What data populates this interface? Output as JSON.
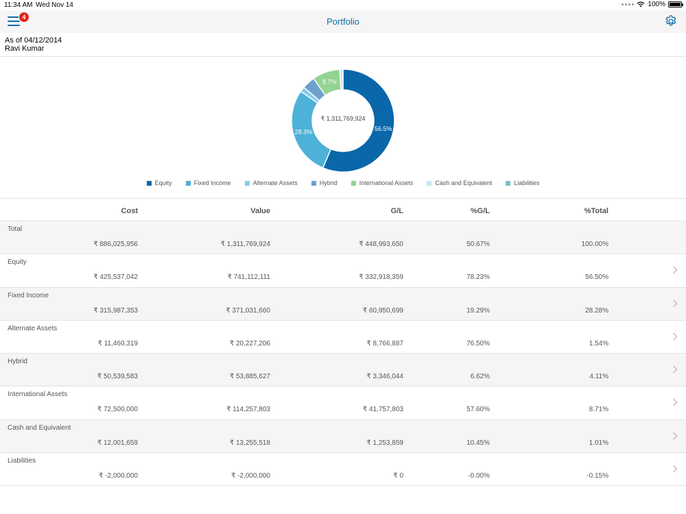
{
  "status": {
    "time": "11:34 AM",
    "date": "Wed Nov 14",
    "battery": "100%",
    "battery_level": 1.0
  },
  "nav": {
    "title": "Portfolio",
    "badge": "4",
    "menu_icon": "hamburger-icon",
    "settings_icon": "gear-icon"
  },
  "asof": {
    "date_line": "As of 04/12/2014",
    "name": "Ravi Kumar"
  },
  "chart_data": {
    "type": "pie",
    "center_label": "₹ 1,311,769,924",
    "slices": [
      {
        "name": "Equity",
        "value": 56.5,
        "color": "#0a67aa",
        "label": "56.5%"
      },
      {
        "name": "Fixed Income",
        "value": 28.3,
        "color": "#4db1d8",
        "label": "28.3%"
      },
      {
        "name": "Alternate Assets",
        "value": 1.54,
        "color": "#86cbed",
        "label": ""
      },
      {
        "name": "Hybrid",
        "value": 4.11,
        "color": "#6fa0cc",
        "label": ""
      },
      {
        "name": "International Assets",
        "value": 8.7,
        "color": "#94d392",
        "label": "8.7%"
      },
      {
        "name": "Cash and Equivalent",
        "value": 1.01,
        "color": "#c5e7f4",
        "label": ""
      },
      {
        "name": "Liabilities",
        "value": 0.0,
        "color": "#70c6c2",
        "label": ""
      }
    ],
    "legend": [
      {
        "name": "Equity",
        "color": "#0a67aa"
      },
      {
        "name": "Fixed Income",
        "color": "#4db1d8"
      },
      {
        "name": "Alternate Assets",
        "color": "#86cbed"
      },
      {
        "name": "Hybrid",
        "color": "#6fa0cc"
      },
      {
        "name": "International Assets",
        "color": "#94d392"
      },
      {
        "name": "Cash and Equivalent",
        "color": "#c5e7f4"
      },
      {
        "name": "Liabilities",
        "color": "#70c6c2"
      }
    ]
  },
  "table": {
    "headers": {
      "cost": "Cost",
      "value": "Value",
      "gl": "G/L",
      "pgl": "%G/L",
      "total": "%Total"
    },
    "rows": [
      {
        "label": "Total",
        "cost": "₹ 886,025,956",
        "value": "₹ 1,311,769,924",
        "gl": "₹ 448,993,650",
        "pgl": "50.67%",
        "total": "100.00%",
        "chevron": false
      },
      {
        "label": "Equity",
        "cost": "₹ 425,537,042",
        "value": "₹ 741,112,111",
        "gl": "₹ 332,918,359",
        "pgl": "78.23%",
        "total": "56.50%",
        "chevron": true
      },
      {
        "label": "Fixed Income",
        "cost": "₹ 315,987,353",
        "value": "₹ 371,031,660",
        "gl": "₹ 60,950,699",
        "pgl": "19.29%",
        "total": "28.28%",
        "chevron": true
      },
      {
        "label": "Alternate Assets",
        "cost": "₹ 11,460,319",
        "value": "₹ 20,227,206",
        "gl": "₹ 8,766,887",
        "pgl": "76.50%",
        "total": "1.54%",
        "chevron": true
      },
      {
        "label": "Hybrid",
        "cost": "₹ 50,539,583",
        "value": "₹ 53,885,627",
        "gl": "₹ 3,346,044",
        "pgl": "6.62%",
        "total": "4.11%",
        "chevron": true
      },
      {
        "label": "International Assets",
        "cost": "₹ 72,500,000",
        "value": "₹ 114,257,803",
        "gl": "₹ 41,757,803",
        "pgl": "57.60%",
        "total": "8.71%",
        "chevron": true
      },
      {
        "label": "Cash and Equivalent",
        "cost": "₹ 12,001,659",
        "value": "₹ 13,255,518",
        "gl": "₹ 1,253,859",
        "pgl": "10.45%",
        "total": "1.01%",
        "chevron": true
      },
      {
        "label": "Liabilities",
        "cost": "₹ -2,000,000",
        "value": "₹ -2,000,000",
        "gl": "₹ 0",
        "pgl": "-0.00%",
        "total": "-0.15%",
        "chevron": true
      }
    ]
  }
}
